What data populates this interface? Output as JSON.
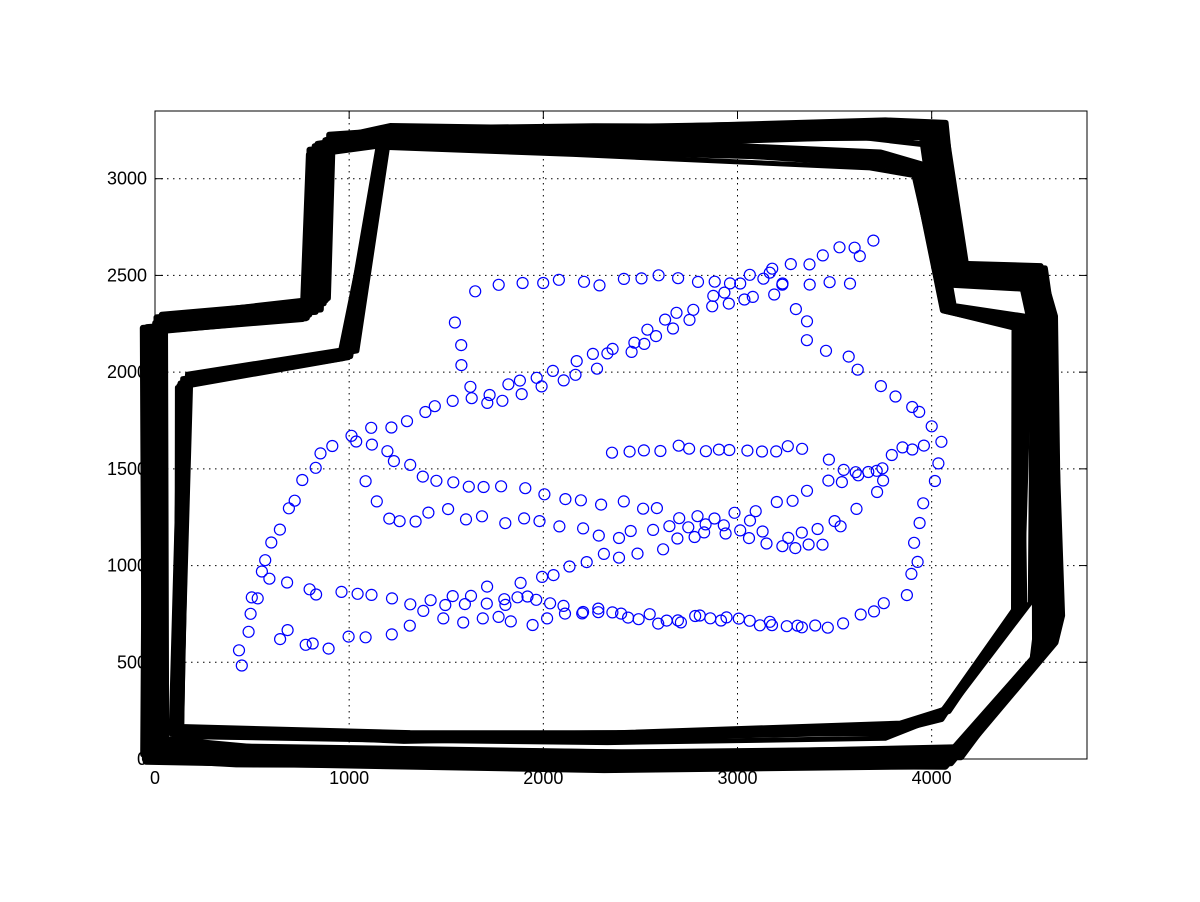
{
  "chart_data": {
    "type": "scatter",
    "title": "",
    "xlabel": "",
    "ylabel": "",
    "xlim": [
      0,
      4800
    ],
    "ylim": [
      0,
      3350
    ],
    "xticks": [
      0,
      1000,
      2000,
      3000,
      4000
    ],
    "yticks": [
      0,
      500,
      1000,
      1500,
      2000,
      2500,
      3000
    ],
    "xtick_labels": [
      "0",
      "1000",
      "2000",
      "3000",
      "4000"
    ],
    "ytick_labels": [
      "0",
      "500",
      "1000",
      "1500",
      "2000",
      "2500",
      "3000"
    ],
    "grid": true,
    "legend": "none",
    "colors": {
      "points": "#0000ff",
      "boundary": "#000000",
      "grid": "#000000"
    },
    "boundary_series": {
      "marker": "line",
      "polygon": [
        [
          0,
          2250
        ],
        [
          830,
          2330
        ],
        [
          850,
          3170
        ],
        [
          1170,
          3220
        ],
        [
          2200,
          3220
        ],
        [
          3700,
          3250
        ],
        [
          4010,
          3240
        ],
        [
          4110,
          2510
        ],
        [
          4520,
          2490
        ],
        [
          4580,
          2230
        ],
        [
          4600,
          700
        ],
        [
          4570,
          560
        ],
        [
          4110,
          10
        ],
        [
          2350,
          0
        ],
        [
          450,
          20
        ],
        [
          0,
          40
        ]
      ],
      "inner_polygon": [
        [
          150,
          1950
        ],
        [
          1000,
          2100
        ],
        [
          1180,
          3200
        ],
        [
          2200,
          3170
        ],
        [
          3700,
          3100
        ],
        [
          3940,
          3050
        ],
        [
          4080,
          2330
        ],
        [
          4470,
          2260
        ],
        [
          4460,
          790
        ],
        [
          4060,
          240
        ],
        [
          3800,
          150
        ],
        [
          2350,
          110
        ],
        [
          1300,
          120
        ],
        [
          120,
          140
        ]
      ],
      "traces": 22
    },
    "point_series": {
      "marker": "circle",
      "tracks": [
        [
          [
            430,
            500
          ],
          [
            470,
            650
          ],
          [
            560,
            1050
          ],
          [
            640,
            1200
          ],
          [
            760,
            1430
          ],
          [
            900,
            1640
          ],
          [
            1100,
            1710
          ],
          [
            1300,
            1740
          ],
          [
            1460,
            1810
          ],
          [
            1620,
            1880
          ],
          [
            1900,
            1950
          ],
          [
            2150,
            2050
          ],
          [
            2450,
            2150
          ],
          [
            2700,
            2300
          ],
          [
            2950,
            2420
          ],
          [
            3200,
            2520
          ],
          [
            3450,
            2600
          ],
          [
            3700,
            2680
          ]
        ],
        [
          [
            1560,
            2240
          ],
          [
            1600,
            2050
          ],
          [
            1690,
            1840
          ],
          [
            1900,
            1890
          ],
          [
            2100,
            1950
          ],
          [
            2350,
            2080
          ],
          [
            2600,
            2200
          ],
          [
            2850,
            2320
          ],
          [
            3100,
            2390
          ],
          [
            3250,
            2440
          ],
          [
            3380,
            2150
          ],
          [
            3560,
            2100
          ],
          [
            3720,
            1950
          ],
          [
            3900,
            1830
          ],
          [
            4000,
            1720
          ]
        ],
        [
          [
            1640,
            2420
          ],
          [
            1760,
            2460
          ],
          [
            1900,
            2470
          ],
          [
            2100,
            2470
          ],
          [
            2300,
            2470
          ],
          [
            2600,
            2480
          ],
          [
            2900,
            2470
          ],
          [
            3150,
            2500
          ],
          [
            3350,
            2460
          ],
          [
            3560,
            2480
          ],
          [
            3630,
            2600
          ]
        ],
        [
          [
            1040,
            1650
          ],
          [
            1180,
            1600
          ],
          [
            1320,
            1520
          ],
          [
            1460,
            1420
          ],
          [
            1700,
            1420
          ],
          [
            1900,
            1400
          ],
          [
            2100,
            1360
          ],
          [
            2300,
            1320
          ],
          [
            2500,
            1300
          ],
          [
            2700,
            1250
          ],
          [
            2900,
            1250
          ],
          [
            3100,
            1280
          ],
          [
            3300,
            1350
          ],
          [
            3450,
            1430
          ],
          [
            3600,
            1460
          ],
          [
            3750,
            1520
          ],
          [
            3860,
            1610
          ],
          [
            3960,
            1620
          ]
        ],
        [
          [
            2350,
            1600
          ],
          [
            2450,
            1600
          ],
          [
            2600,
            1600
          ],
          [
            2750,
            1600
          ],
          [
            2900,
            1600
          ],
          [
            3050,
            1600
          ],
          [
            3200,
            1600
          ],
          [
            3350,
            1600
          ],
          [
            3450,
            1550
          ],
          [
            3600,
            1470
          ],
          [
            3700,
            1500
          ],
          [
            3800,
            1570
          ],
          [
            3900,
            1600
          ]
        ],
        [
          [
            1080,
            1450
          ],
          [
            1200,
            1250
          ],
          [
            1350,
            1240
          ],
          [
            1500,
            1270
          ],
          [
            1700,
            1250
          ],
          [
            2000,
            1220
          ],
          [
            2300,
            1150
          ],
          [
            2550,
            1180
          ],
          [
            2750,
            1200
          ],
          [
            3000,
            1180
          ],
          [
            3150,
            1130
          ],
          [
            3300,
            1090
          ],
          [
            3450,
            1130
          ],
          [
            3600,
            1300
          ],
          [
            3700,
            1400
          ],
          [
            3750,
            1440
          ]
        ],
        [
          [
            550,
            820
          ],
          [
            600,
            950
          ],
          [
            700,
            900
          ],
          [
            850,
            870
          ],
          [
            1030,
            860
          ],
          [
            1200,
            830
          ],
          [
            1400,
            800
          ],
          [
            1600,
            820
          ],
          [
            1800,
            780
          ],
          [
            1900,
            900
          ],
          [
            2050,
            950
          ],
          [
            2300,
            1050
          ],
          [
            2600,
            1090
          ],
          [
            2850,
            1200
          ],
          [
            3050,
            1220
          ],
          [
            3250,
            1150
          ],
          [
            3400,
            1200
          ],
          [
            3500,
            1230
          ]
        ],
        [
          [
            1550,
            830
          ],
          [
            1700,
            870
          ],
          [
            1900,
            820
          ],
          [
            2050,
            800
          ],
          [
            2200,
            780
          ],
          [
            2450,
            750
          ],
          [
            2700,
            730
          ],
          [
            2950,
            720
          ],
          [
            3150,
            710
          ],
          [
            3350,
            700
          ],
          [
            3550,
            700
          ],
          [
            3700,
            760
          ],
          [
            3850,
            860
          ],
          [
            3900,
            960
          ],
          [
            3930,
            1200
          ],
          [
            4000,
            1420
          ],
          [
            4050,
            1640
          ]
        ],
        [
          [
            640,
            600
          ],
          [
            700,
            650
          ],
          [
            760,
            600
          ],
          [
            900,
            560
          ],
          [
            1000,
            620
          ],
          [
            1100,
            610
          ],
          [
            1200,
            630
          ],
          [
            1300,
            700
          ],
          [
            1400,
            770
          ],
          [
            1500,
            730
          ],
          [
            1700,
            720
          ],
          [
            1850,
            710
          ],
          [
            2000,
            720
          ],
          [
            2200,
            740
          ],
          [
            2400,
            740
          ],
          [
            2600,
            720
          ],
          [
            2800,
            720
          ],
          [
            3000,
            720
          ],
          [
            3200,
            700
          ],
          [
            3400,
            690
          ]
        ]
      ]
    }
  }
}
